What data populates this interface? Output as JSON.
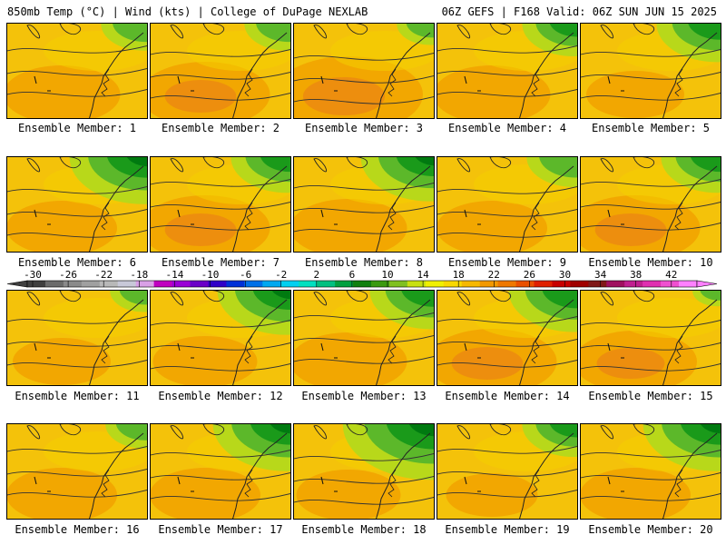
{
  "header": {
    "left": "850mb Temp (°C) | Wind (kts) | College of DuPage NEXLAB",
    "right": "06Z GEFS | F168 Valid: 06Z SUN JUN 15 2025"
  },
  "colorbar": {
    "tick_labels": [
      "-30",
      "-26",
      "-22",
      "-18",
      "-14",
      "-10",
      "-6",
      "-2",
      "2",
      "6",
      "10",
      "14",
      "18",
      "22",
      "26",
      "30",
      "34",
      "38",
      "42"
    ],
    "colors": [
      "#3f3f3f",
      "#6b6b6b",
      "#8a8a8a",
      "#a0a0a0",
      "#b8b8b8",
      "#c8c8d8",
      "#d9a0e6",
      "#c000c0",
      "#9a00d6",
      "#6a00c8",
      "#3000c8",
      "#0030d8",
      "#0070e8",
      "#00a8f0",
      "#00d0f0",
      "#00e0c0",
      "#00c080",
      "#00a040",
      "#108010",
      "#3a9a10",
      "#80c020",
      "#c8e010",
      "#f0f000",
      "#f8d800",
      "#f6b800",
      "#f29800",
      "#ef7800",
      "#ea5000",
      "#e02000",
      "#c80000",
      "#a00000",
      "#801818",
      "#a01060",
      "#c02090",
      "#e030b0",
      "#f050d0",
      "#ff80ff"
    ]
  },
  "legend": {
    "colors": {
      "green_dark": "#007a10",
      "green": "#1a9a1a",
      "green_light": "#5cb82a",
      "lime": "#b8d81a",
      "yellow": "#f4d000",
      "gold": "#f4c20a",
      "orange": "#f2a400",
      "orange_dark": "#ec8a10"
    }
  },
  "panels": [
    {
      "label": "Ensemble Member: 1",
      "green": 0.25,
      "orange": 0.35
    },
    {
      "label": "Ensemble Member: 2",
      "green": 0.25,
      "orange": 0.45
    },
    {
      "label": "Ensemble Member: 3",
      "green": 0.15,
      "orange": 0.6
    },
    {
      "label": "Ensemble Member: 4",
      "green": 0.35,
      "orange": 0.35
    },
    {
      "label": "Ensemble Member: 5",
      "green": 0.45,
      "orange": 0.2
    },
    {
      "label": "Ensemble Member: 6",
      "green": 0.6,
      "orange": 0.3
    },
    {
      "label": "Ensemble Member: 7",
      "green": 0.4,
      "orange": 0.45
    },
    {
      "label": "Ensemble Member: 8",
      "green": 0.55,
      "orange": 0.35
    },
    {
      "label": "Ensemble Member: 9",
      "green": 0.3,
      "orange": 0.3
    },
    {
      "label": "Ensemble Member: 10",
      "green": 0.4,
      "orange": 0.45
    },
    {
      "label": "Ensemble Member: 11",
      "green": 0.15,
      "orange": 0.2
    },
    {
      "label": "Ensemble Member: 12",
      "green": 0.55,
      "orange": 0.25
    },
    {
      "label": "Ensemble Member: 13",
      "green": 0.45,
      "orange": 0.35
    },
    {
      "label": "Ensemble Member: 14",
      "green": 0.5,
      "orange": 0.45
    },
    {
      "label": "Ensemble Member: 15",
      "green": 0.05,
      "orange": 0.4
    },
    {
      "label": "Ensemble Member: 16",
      "green": 0.2,
      "orange": 0.3
    },
    {
      "label": "Ensemble Member: 17",
      "green": 0.6,
      "orange": 0.3
    },
    {
      "label": "Ensemble Member: 18",
      "green": 0.75,
      "orange": 0.25
    },
    {
      "label": "Ensemble Member: 19",
      "green": 0.35,
      "orange": 0.15
    },
    {
      "label": "Ensemble Member: 20",
      "green": 0.6,
      "orange": 0.3
    }
  ]
}
